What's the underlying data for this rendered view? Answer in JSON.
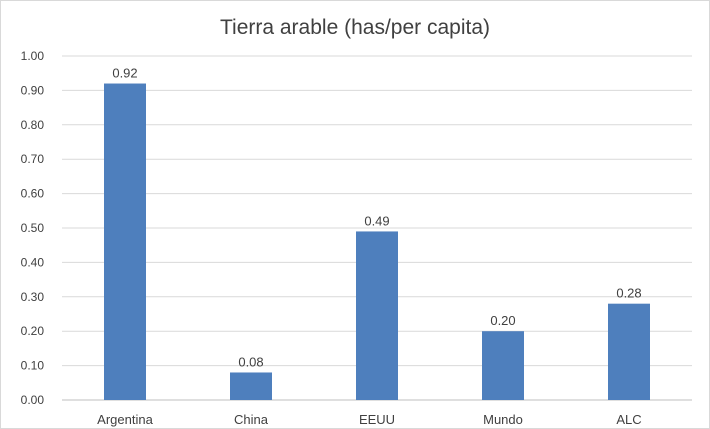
{
  "chart_data": {
    "type": "bar",
    "title": "Tierra arable (has/per capita)",
    "categories": [
      "Argentina",
      "China",
      "EEUU",
      "Mundo",
      "ALC"
    ],
    "values": [
      0.92,
      0.08,
      0.49,
      0.2,
      0.28
    ],
    "data_labels": [
      "0.92",
      "0.08",
      "0.49",
      "0.20",
      "0.28"
    ],
    "y_ticks": [
      "0.00",
      "0.10",
      "0.20",
      "0.30",
      "0.40",
      "0.50",
      "0.60",
      "0.70",
      "0.80",
      "0.90",
      "1.00"
    ],
    "ylim": [
      0,
      1.0
    ],
    "xlabel": "",
    "ylabel": "",
    "grid": true,
    "legend": "none",
    "colors": {
      "bar": "#4e7fbd",
      "grid": "#d9d9d9",
      "text": "#404040"
    }
  }
}
